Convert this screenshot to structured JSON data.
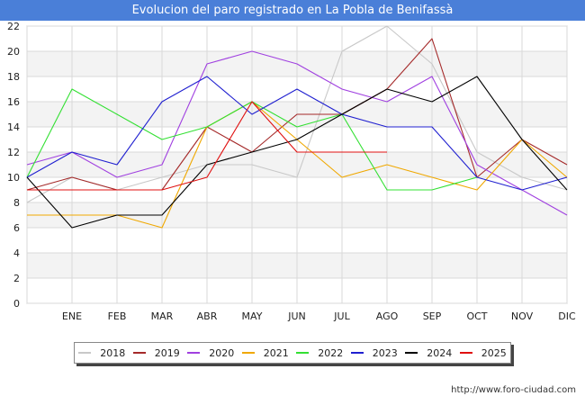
{
  "title": "Evolucion del paro registrado en La Pobla de Benifassà",
  "source": "http://www.foro-ciudad.com",
  "colors": {
    "title_bg": "#4a7fd8",
    "plot_band": "#f3f3f3",
    "grid": "#d8d8d8"
  },
  "chart_data": {
    "type": "line",
    "title": "Evolucion del paro registrado en La Pobla de Benifassà",
    "xlabel": "",
    "ylabel": "",
    "ylim": [
      0,
      22
    ],
    "yticks": [
      "0",
      "2",
      "4",
      "6",
      "8",
      "10",
      "12",
      "14",
      "16",
      "18",
      "20",
      "22"
    ],
    "categories": [
      "",
      "ENE",
      "FEB",
      "MAR",
      "ABR",
      "MAY",
      "JUN",
      "JUL",
      "AGO",
      "SEP",
      "OCT",
      "NOV",
      "DIC"
    ],
    "grid": true,
    "legend_position": "bottom",
    "series": [
      {
        "name": "2018",
        "color": "#c8c8c8",
        "values": [
          8,
          10,
          9,
          10,
          11,
          11,
          10,
          20,
          22,
          19,
          12,
          10,
          9
        ]
      },
      {
        "name": "2019",
        "color": "#a52a2a",
        "values": [
          9,
          10,
          9,
          9,
          14,
          12,
          15,
          15,
          17,
          21,
          10,
          13,
          11
        ]
      },
      {
        "name": "2020",
        "color": "#a040e0",
        "values": [
          11,
          12,
          10,
          11,
          19,
          20,
          19,
          17,
          16,
          18,
          11,
          9,
          7
        ]
      },
      {
        "name": "2021",
        "color": "#f0a800",
        "values": [
          7,
          7,
          7,
          6,
          14,
          16,
          13,
          10,
          11,
          10,
          9,
          13,
          10
        ]
      },
      {
        "name": "2022",
        "color": "#33e033",
        "values": [
          10,
          17,
          15,
          13,
          14,
          16,
          14,
          15,
          9,
          9,
          10,
          null,
          null
        ]
      },
      {
        "name": "2023",
        "color": "#2020d0",
        "values": [
          10,
          12,
          11,
          16,
          18,
          15,
          17,
          15,
          14,
          14,
          10,
          9,
          10
        ]
      },
      {
        "name": "2024",
        "color": "#000000",
        "values": [
          10,
          6,
          7,
          7,
          11,
          12,
          13,
          15,
          17,
          16,
          18,
          13,
          9
        ]
      },
      {
        "name": "2025",
        "color": "#e01010",
        "values": [
          9,
          9,
          9,
          9,
          10,
          16,
          12,
          12,
          12,
          null,
          null,
          null,
          null
        ]
      }
    ]
  }
}
